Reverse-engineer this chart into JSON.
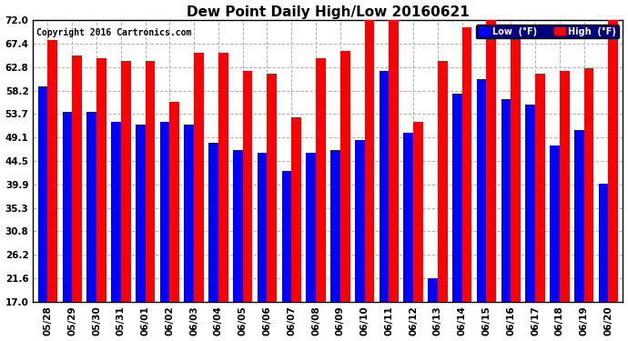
{
  "title": "Dew Point Daily High/Low 20160621",
  "copyright": "Copyright 2016 Cartronics.com",
  "dates": [
    "05/28",
    "05/29",
    "05/30",
    "05/31",
    "06/01",
    "06/02",
    "06/03",
    "06/04",
    "06/05",
    "06/06",
    "06/07",
    "06/08",
    "06/09",
    "06/10",
    "06/11",
    "06/12",
    "06/13",
    "06/14",
    "06/15",
    "06/16",
    "06/17",
    "06/18",
    "06/19",
    "06/20"
  ],
  "high": [
    68.0,
    65.0,
    64.5,
    64.0,
    64.0,
    56.0,
    65.5,
    65.5,
    62.0,
    61.5,
    53.0,
    64.5,
    66.0,
    72.0,
    72.5,
    52.0,
    64.0,
    70.5,
    72.5,
    70.0,
    61.5,
    62.0,
    62.5,
    72.0
  ],
  "low": [
    59.0,
    54.0,
    54.0,
    52.0,
    51.5,
    52.0,
    51.5,
    48.0,
    46.5,
    46.0,
    42.5,
    46.0,
    46.5,
    48.5,
    62.0,
    50.0,
    21.6,
    57.5,
    60.5,
    56.5,
    55.5,
    47.5,
    50.5,
    40.0
  ],
  "yticks": [
    17.0,
    21.6,
    26.2,
    30.8,
    35.3,
    39.9,
    44.5,
    49.1,
    53.7,
    58.2,
    62.8,
    67.4,
    72.0
  ],
  "ymin": 17.0,
  "ymax": 72.0,
  "low_color": "#0000ff",
  "high_color": "#ff0000",
  "bg_color": "#ffffff",
  "grid_color": "#b0b0b0",
  "bar_width": 0.4,
  "title_fontsize": 11,
  "tick_fontsize": 7.5,
  "legend_low_label": "Low  (°F)",
  "legend_high_label": "High  (°F)"
}
